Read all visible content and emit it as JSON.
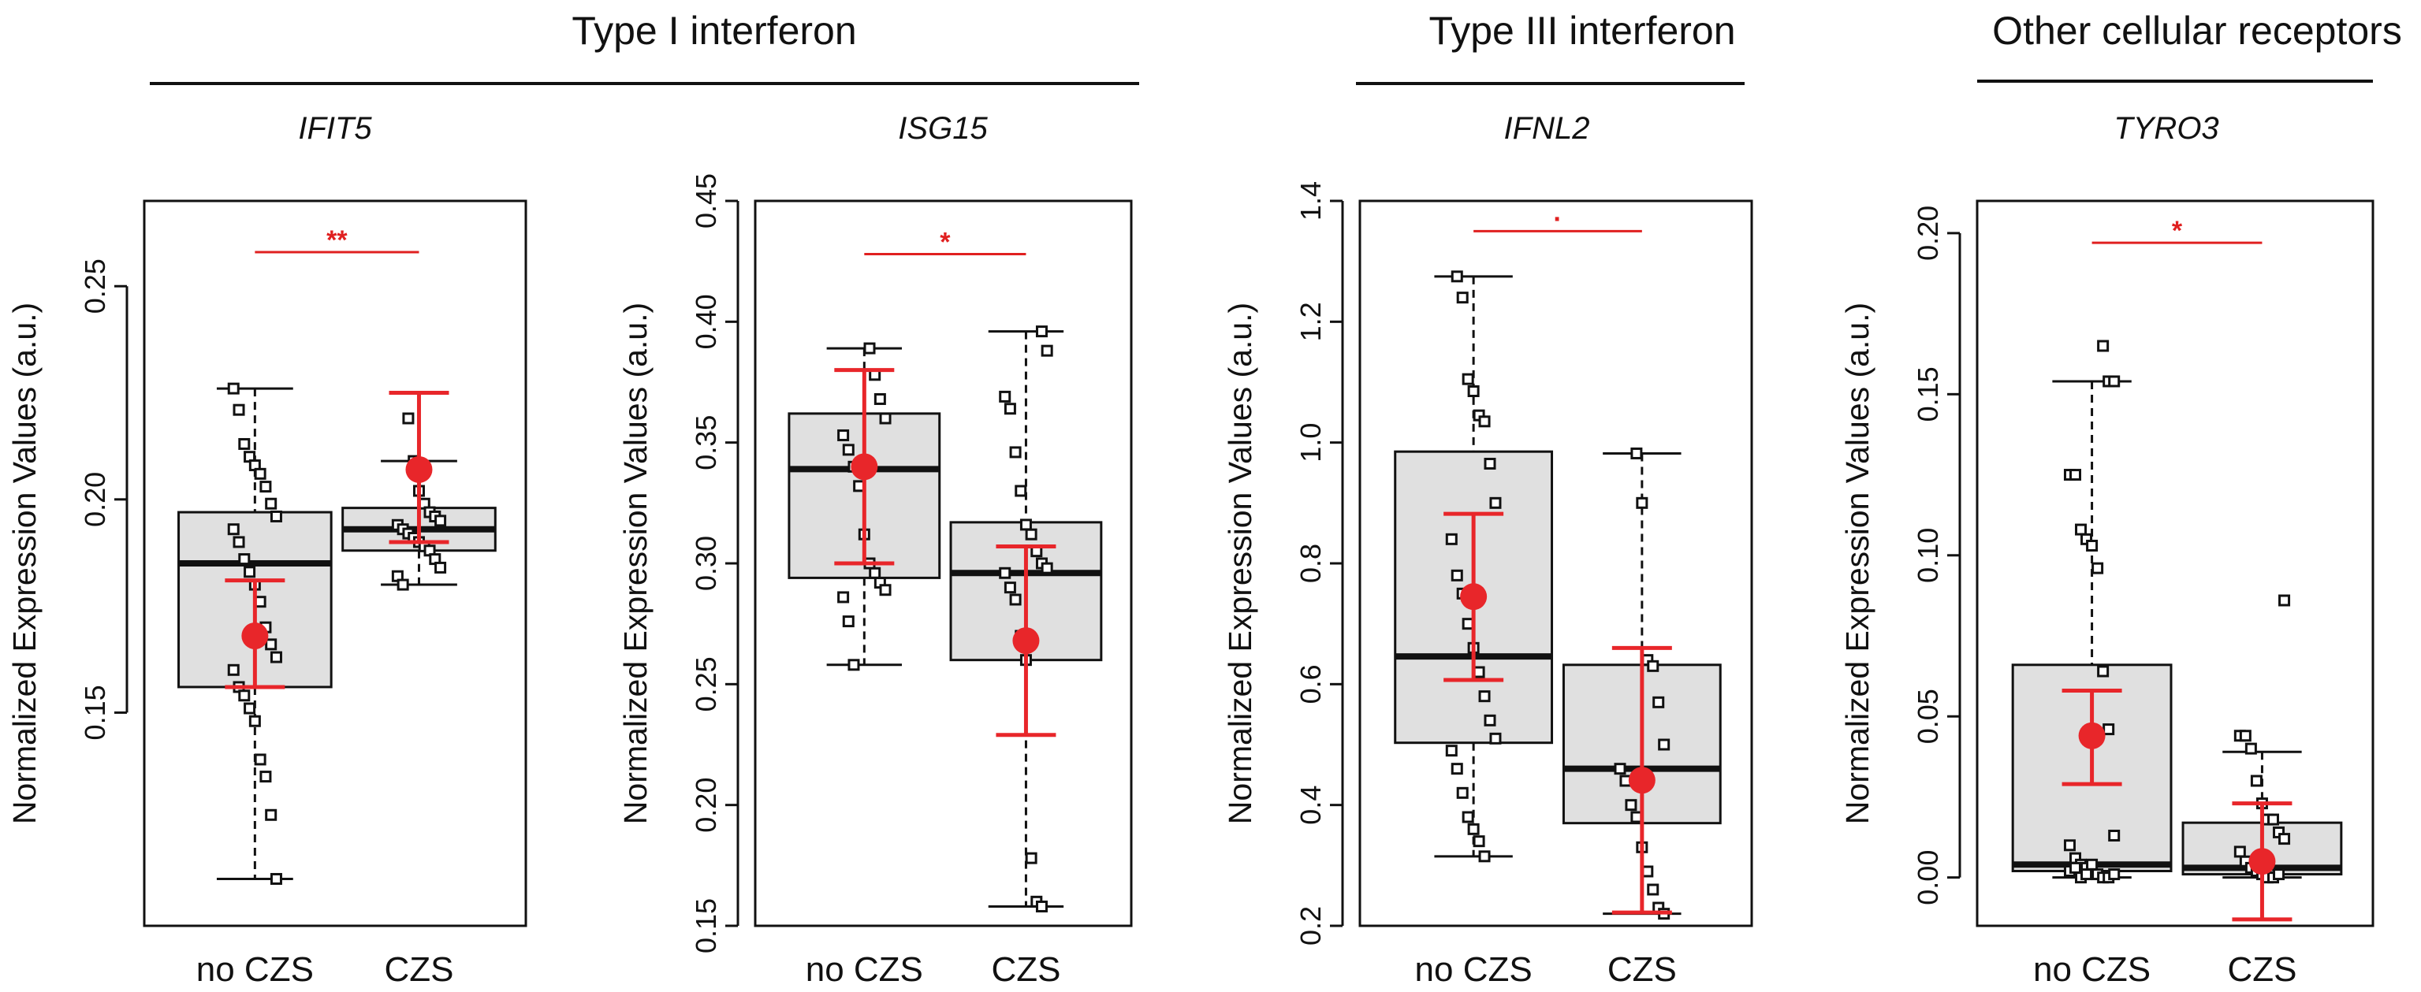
{
  "colors": {
    "box_fill": "#e0e0e0",
    "mean_marker": "#e8262a",
    "sig_bar": "#e02020",
    "points": "#111111"
  },
  "groups": [
    {
      "title": "Type I interferon"
    },
    {
      "title": "Type III interferon"
    },
    {
      "title": "Other cellular receptors"
    }
  ],
  "chart_data": [
    {
      "type": "box",
      "gene": "IFIT5",
      "ylabel": "Normalized Expression Values (a.u.)",
      "categories": [
        "no CZS",
        "CZS"
      ],
      "ylim": [
        0.1,
        0.27
      ],
      "yticks": [
        0.15,
        0.2,
        0.25
      ],
      "ytick_labels": [
        "0.15",
        "0.20",
        "0.25"
      ],
      "significance": "**",
      "sig_y": 0.258,
      "boxes": [
        {
          "min": 0.111,
          "q1": 0.156,
          "median": 0.185,
          "q3": 0.197,
          "max": 0.226,
          "mean": 0.168,
          "err_low": 0.156,
          "err_high": 0.181,
          "points": [
            0.226,
            0.221,
            0.213,
            0.21,
            0.208,
            0.206,
            0.203,
            0.199,
            0.196,
            0.193,
            0.19,
            0.186,
            0.183,
            0.18,
            0.176,
            0.17,
            0.166,
            0.163,
            0.16,
            0.156,
            0.154,
            0.151,
            0.148,
            0.139,
            0.135,
            0.126,
            0.111
          ]
        },
        {
          "min": 0.18,
          "q1": 0.188,
          "median": 0.193,
          "q3": 0.198,
          "max": 0.209,
          "mean": 0.207,
          "err_low": 0.19,
          "err_high": 0.225,
          "points": [
            0.219,
            0.209,
            0.202,
            0.199,
            0.197,
            0.196,
            0.195,
            0.194,
            0.193,
            0.192,
            0.191,
            0.19,
            0.189,
            0.188,
            0.186,
            0.184,
            0.182,
            0.18
          ]
        }
      ]
    },
    {
      "type": "box",
      "gene": "ISG15",
      "ylabel": "Normalized Expression Values (a.u.)",
      "categories": [
        "no CZS",
        "CZS"
      ],
      "ylim": [
        0.15,
        0.45
      ],
      "yticks": [
        0.15,
        0.2,
        0.25,
        0.3,
        0.35,
        0.4,
        0.45
      ],
      "ytick_labels": [
        "0.15",
        "0.20",
        "0.25",
        "0.30",
        "0.35",
        "0.40",
        "0.45"
      ],
      "significance": "*",
      "sig_y": 0.428,
      "boxes": [
        {
          "min": 0.258,
          "q1": 0.294,
          "median": 0.339,
          "q3": 0.362,
          "max": 0.389,
          "mean": 0.34,
          "err_low": 0.3,
          "err_high": 0.38,
          "points": [
            0.389,
            0.378,
            0.368,
            0.36,
            0.353,
            0.347,
            0.34,
            0.332,
            0.312,
            0.3,
            0.296,
            0.292,
            0.289,
            0.286,
            0.276,
            0.258
          ]
        },
        {
          "min": 0.158,
          "q1": 0.26,
          "median": 0.296,
          "q3": 0.317,
          "max": 0.396,
          "mean": 0.268,
          "err_low": 0.229,
          "err_high": 0.307,
          "points": [
            0.396,
            0.388,
            0.369,
            0.364,
            0.346,
            0.33,
            0.316,
            0.312,
            0.305,
            0.3,
            0.298,
            0.296,
            0.29,
            0.285,
            0.27,
            0.26,
            0.178,
            0.16,
            0.158
          ]
        }
      ]
    },
    {
      "type": "box",
      "gene": "IFNL2",
      "ylabel": "Normalized Expression Values (a.u.)",
      "categories": [
        "no CZS",
        "CZS"
      ],
      "ylim": [
        0.2,
        1.4
      ],
      "yticks": [
        0.2,
        0.4,
        0.6,
        0.8,
        1.0,
        1.2,
        1.4
      ],
      "ytick_labels": [
        "0.2",
        "0.4",
        "0.6",
        "0.8",
        "1.0",
        "1.2",
        "1.4"
      ],
      "significance": "·",
      "sig_y": 1.35,
      "boxes": [
        {
          "min": 0.315,
          "q1": 0.503,
          "median": 0.646,
          "q3": 0.985,
          "max": 1.275,
          "mean": 0.745,
          "err_low": 0.607,
          "err_high": 0.882,
          "points": [
            1.275,
            1.24,
            1.105,
            1.085,
            1.045,
            1.035,
            0.965,
            0.9,
            0.84,
            0.78,
            0.75,
            0.7,
            0.66,
            0.62,
            0.58,
            0.54,
            0.51,
            0.49,
            0.46,
            0.42,
            0.38,
            0.36,
            0.34,
            0.315
          ]
        },
        {
          "min": 0.22,
          "q1": 0.37,
          "median": 0.46,
          "q3": 0.632,
          "max": 0.982,
          "mean": 0.441,
          "err_low": 0.222,
          "err_high": 0.66,
          "points": [
            0.982,
            0.9,
            0.64,
            0.63,
            0.57,
            0.5,
            0.46,
            0.44,
            0.4,
            0.38,
            0.33,
            0.29,
            0.26,
            0.23,
            0.22
          ]
        }
      ]
    },
    {
      "type": "box",
      "gene": "TYRO3",
      "ylabel": "Normalized Expression Values (a.u.)",
      "categories": [
        "no CZS",
        "CZS"
      ],
      "ylim": [
        -0.015,
        0.21
      ],
      "yticks": [
        0.0,
        0.05,
        0.1,
        0.15,
        0.2
      ],
      "ytick_labels": [
        "0.00",
        "0.05",
        "0.10",
        "0.15",
        "0.20"
      ],
      "significance": "*",
      "sig_y": 0.197,
      "boxes": [
        {
          "min": 0.0,
          "q1": 0.002,
          "median": 0.004,
          "q3": 0.066,
          "max": 0.154,
          "mean": 0.044,
          "err_low": 0.029,
          "err_high": 0.058,
          "points": [
            0.165,
            0.154,
            0.154,
            0.125,
            0.125,
            0.108,
            0.105,
            0.103,
            0.096,
            0.064,
            0.046,
            0.013,
            0.01,
            0.006,
            0.004,
            0.003,
            0.002,
            0.001,
            0.0,
            0.0,
            0.001,
            0.002,
            0.003,
            0.0,
            0.001,
            0.004
          ]
        },
        {
          "min": 0.0,
          "q1": 0.001,
          "median": 0.003,
          "q3": 0.017,
          "max": 0.039,
          "mean": 0.005,
          "err_low": -0.013,
          "err_high": 0.023,
          "points": [
            0.086,
            0.044,
            0.044,
            0.04,
            0.03,
            0.023,
            0.018,
            0.018,
            0.014,
            0.012,
            0.008,
            0.005,
            0.003,
            0.002,
            0.001,
            0.0,
            0.0,
            0.001
          ]
        }
      ]
    }
  ]
}
